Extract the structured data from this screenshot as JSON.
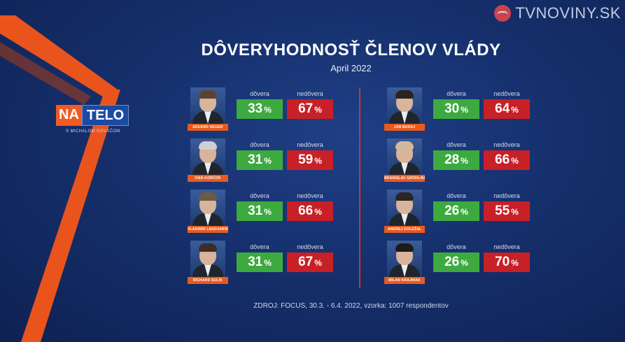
{
  "watermark": {
    "text": "TVNOVINY.SK"
  },
  "show": {
    "na": "NA",
    "telo": "TELO",
    "sub": "S MICHALOM KOVÁČOM"
  },
  "title": "DÔVERYHODNOSŤ ČLENOV VLÁDY",
  "subtitle": "April 2022",
  "labels": {
    "trust": "dôvera",
    "distrust": "nedôvera",
    "pct": "%"
  },
  "footer": "ZDROJ: FOCUS, 30.3. - 6.4. 2022, vzorka: 1007 respondentov",
  "colors": {
    "trust": "#3daa3f",
    "distrust": "#c82027",
    "accent": "#e85a1e"
  },
  "chart_data": {
    "type": "table",
    "title": "DÔVERYHODNOSŤ ČLENOV VLÁDY",
    "subtitle": "April 2022",
    "columns": [
      "dôvera",
      "nedôvera"
    ],
    "unit": "%",
    "rows": [
      {
        "name": "EDUARD HEGER",
        "trust": 33,
        "distrust": 67
      },
      {
        "name": "IVAN KORČOK",
        "trust": 31,
        "distrust": 59
      },
      {
        "name": "VLADIMÍR LENGVARSKÝ",
        "trust": 31,
        "distrust": 66
      },
      {
        "name": "RICHARD SULÍK",
        "trust": 31,
        "distrust": 67
      },
      {
        "name": "JÁN BUDAJ",
        "trust": 30,
        "distrust": 64
      },
      {
        "name": "BRANISLAV GRÖHLING",
        "trust": 28,
        "distrust": 66
      },
      {
        "name": "ANDREJ DOLEŽAL",
        "trust": 26,
        "distrust": 55
      },
      {
        "name": "MILAN KRAJNIAK",
        "trust": 26,
        "distrust": 70
      }
    ]
  }
}
